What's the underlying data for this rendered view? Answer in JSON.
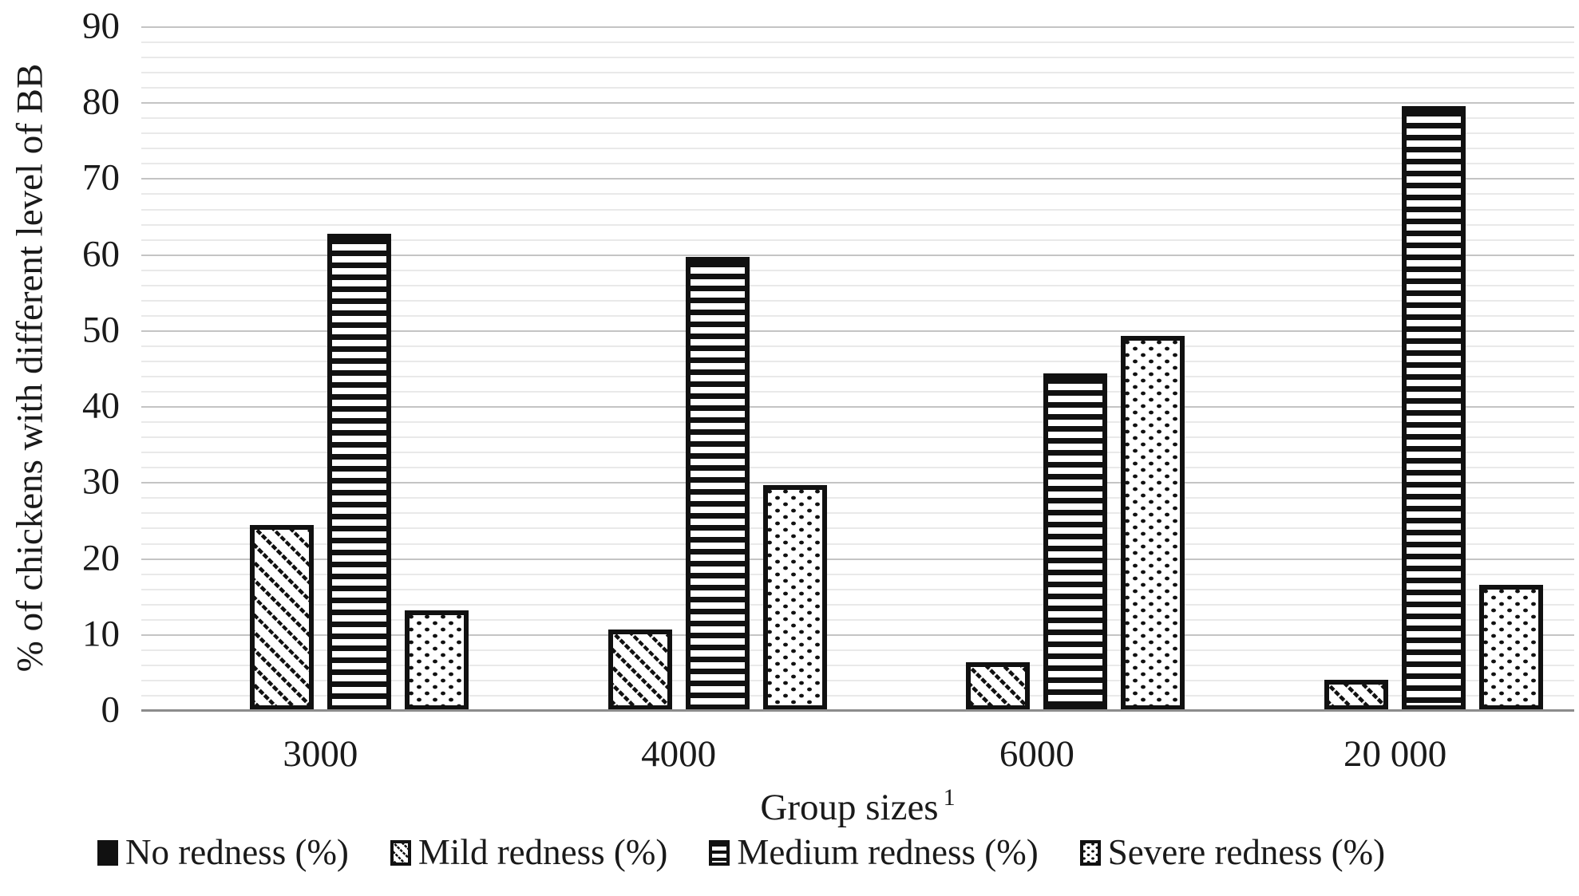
{
  "figure": {
    "background": "#ffffff",
    "text_color": "#1a1a1a"
  },
  "chart_data": {
    "type": "bar",
    "title": "",
    "ylabel": "% of chickens with different level of BB",
    "xlabel": "Group sizes",
    "xlabel_superscript": "1",
    "categories": [
      "3000",
      "4000",
      "6000",
      "20 000"
    ],
    "series": [
      {
        "name": "No redness (%)",
        "pattern": "solid",
        "values": [
          0,
          0,
          0,
          0
        ]
      },
      {
        "name": "Mild redness (%)",
        "pattern": "diagonal",
        "values": [
          24.4,
          10.6,
          6.3,
          4.0
        ]
      },
      {
        "name": "Medium redness (%)",
        "pattern": "horizontal",
        "values": [
          62.7,
          59.7,
          44.3,
          79.5
        ]
      },
      {
        "name": "Severe redness (%)",
        "pattern": "dots",
        "values": [
          13.1,
          29.6,
          49.3,
          16.5
        ]
      }
    ],
    "ylim": [
      0,
      90
    ],
    "yticks": [
      0,
      10,
      20,
      30,
      40,
      50,
      60,
      70,
      80,
      90
    ],
    "minor_grid_step": 2,
    "grid": "horizontal-minor-and-major",
    "legend_position": "bottom",
    "colors": {
      "bar_ink": "#111111",
      "bar_background": "#ffffff",
      "minor_grid": "#e9e9e9",
      "major_grid": "#c4c4c4",
      "axis_line": "#8c8c8c"
    }
  }
}
